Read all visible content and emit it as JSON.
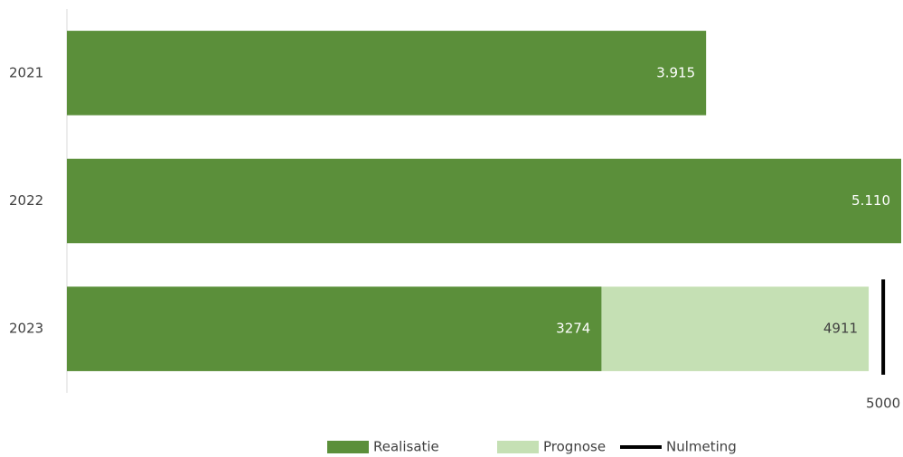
{
  "chart_data": {
    "type": "bar",
    "orientation": "horizontal",
    "categories": [
      "2021",
      "2022",
      "2023"
    ],
    "series": [
      {
        "name": "Realisatie",
        "color": "#5b8f3a",
        "values": [
          3915,
          5110,
          3274
        ],
        "value_labels": [
          "3.915",
          "5.110",
          "3274"
        ]
      },
      {
        "name": "Prognose",
        "color": "#c5e0b4",
        "values": [
          null,
          null,
          4911
        ]
      },
      {
        "name": "Nulmeting",
        "color": "#000000",
        "marker": "line",
        "values": [
          null,
          null,
          5000
        ]
      }
    ],
    "xlim": [
      0,
      5110
    ],
    "legend": "bottom"
  }
}
